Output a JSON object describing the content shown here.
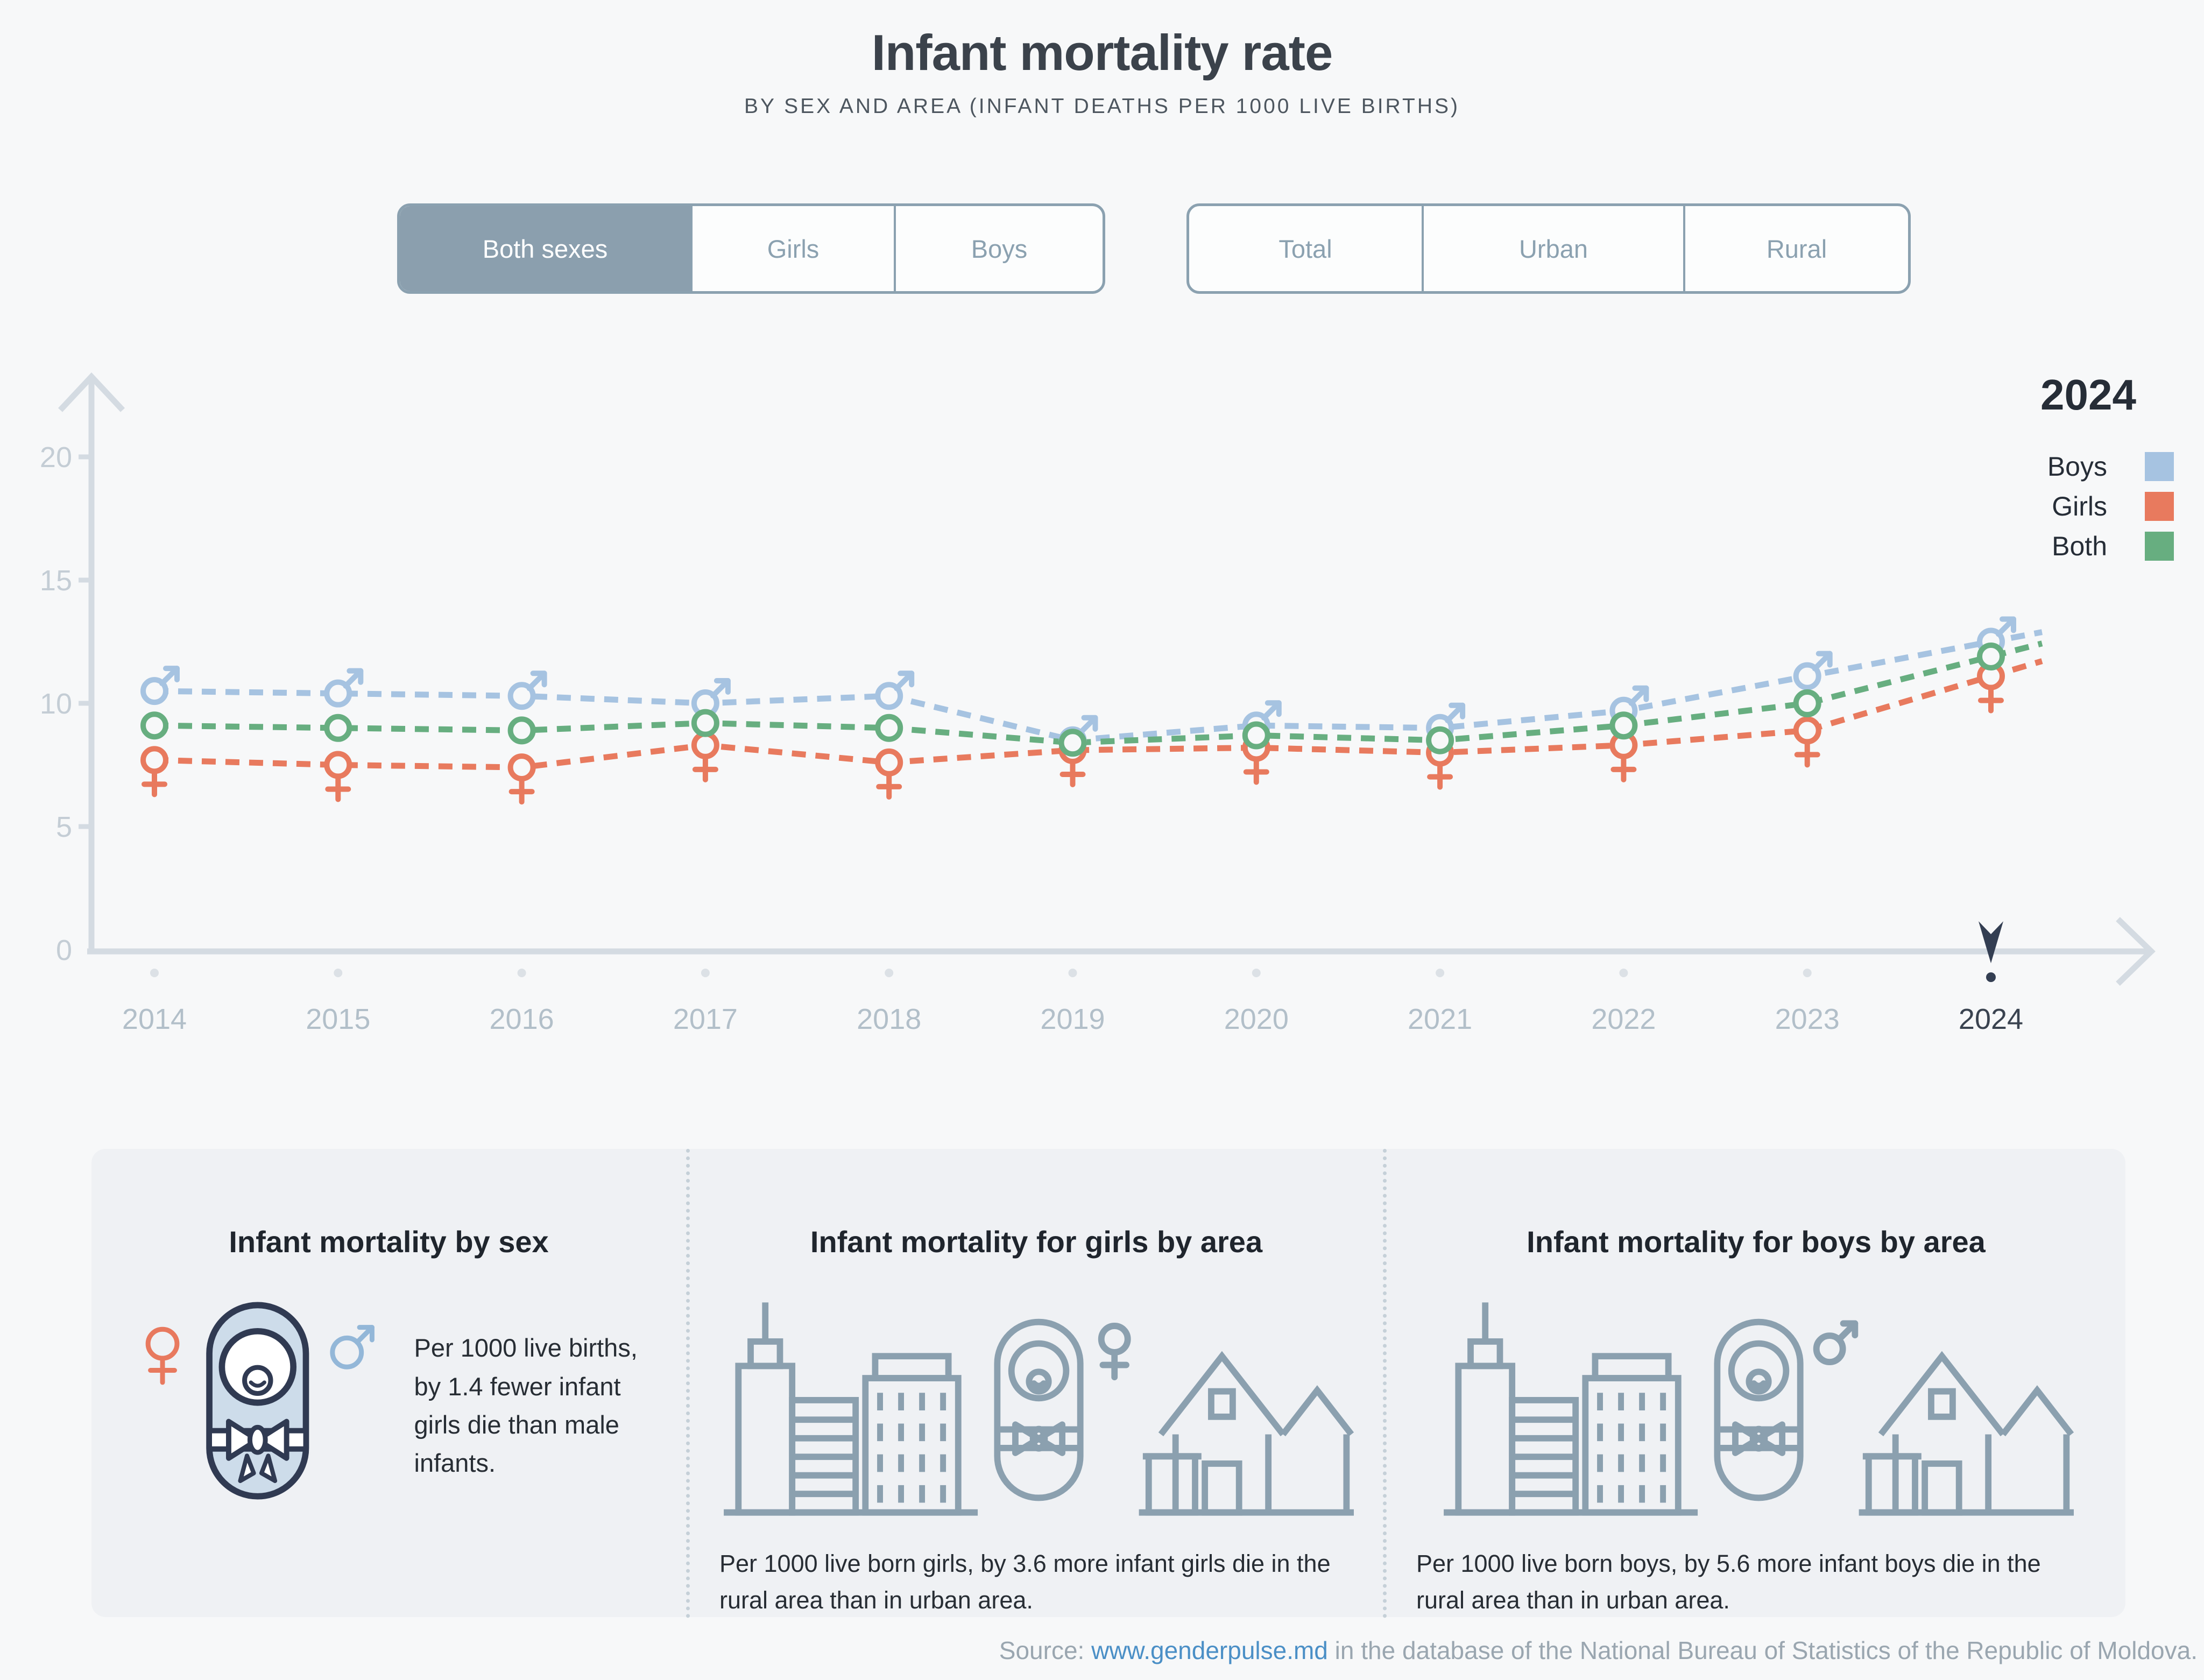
{
  "header": {
    "title": "Infant mortality rate",
    "subtitle": "BY SEX AND AREA (INFANT DEATHS PER 1000 LIVE BIRTHS)"
  },
  "controls": {
    "sex": {
      "options": [
        "Both sexes",
        "Girls",
        "Boys"
      ],
      "active": "Both sexes"
    },
    "area": {
      "options": [
        "Total",
        "Urban",
        "Rural"
      ],
      "active": ""
    }
  },
  "legend": {
    "year": "2024",
    "items": [
      {
        "label": "Boys",
        "color": "#a6c3e1"
      },
      {
        "label": "Girls",
        "color": "#e87a5e"
      },
      {
        "label": "Both",
        "color": "#67ae80"
      }
    ]
  },
  "chart_data": {
    "type": "line",
    "title": "Infant mortality rate",
    "x": [
      2014,
      2015,
      2016,
      2017,
      2018,
      2019,
      2020,
      2021,
      2022,
      2023,
      2024
    ],
    "series": [
      {
        "name": "Boys",
        "color": "#a6c3e1",
        "marker": "male",
        "values": [
          10.5,
          10.4,
          10.3,
          10.0,
          10.3,
          8.5,
          9.1,
          9.0,
          9.7,
          11.1,
          12.5
        ]
      },
      {
        "name": "Girls",
        "color": "#e87a5e",
        "marker": "female",
        "values": [
          7.7,
          7.5,
          7.4,
          8.3,
          7.6,
          8.1,
          8.2,
          8.0,
          8.3,
          8.9,
          11.1
        ]
      },
      {
        "name": "Both",
        "color": "#67ae80",
        "marker": "circle",
        "values": [
          9.1,
          9.0,
          8.9,
          9.2,
          9.0,
          8.4,
          8.7,
          8.5,
          9.1,
          10.0,
          11.9
        ]
      }
    ],
    "yticks": [
      0,
      5,
      10,
      15,
      20
    ],
    "ylim": [
      0,
      22
    ],
    "highlight_x": 2024,
    "grid": false,
    "line_style": "dashed",
    "legend_position": "top-right"
  },
  "insights": {
    "by_sex": {
      "title": "Infant mortality by sex",
      "text": "Per 1000 live births, by 1.4 fewer infant girls die than male infants."
    },
    "girls_by_area": {
      "title": "Infant mortality for girls by area",
      "text": "Per 1000 live born girls, by 3.6 more infant girls die in the rural area than in urban area."
    },
    "boys_by_area": {
      "title": "Infant mortality for boys by area",
      "text": "Per 1000 live born boys, by 5.6 more infant boys die in the rural area than in urban area."
    }
  },
  "footer": {
    "prefix": "Source: ",
    "link": "www.genderpulse.md",
    "suffix": " in the database of the National Bureau of Statistics of the Republic of Moldova."
  }
}
